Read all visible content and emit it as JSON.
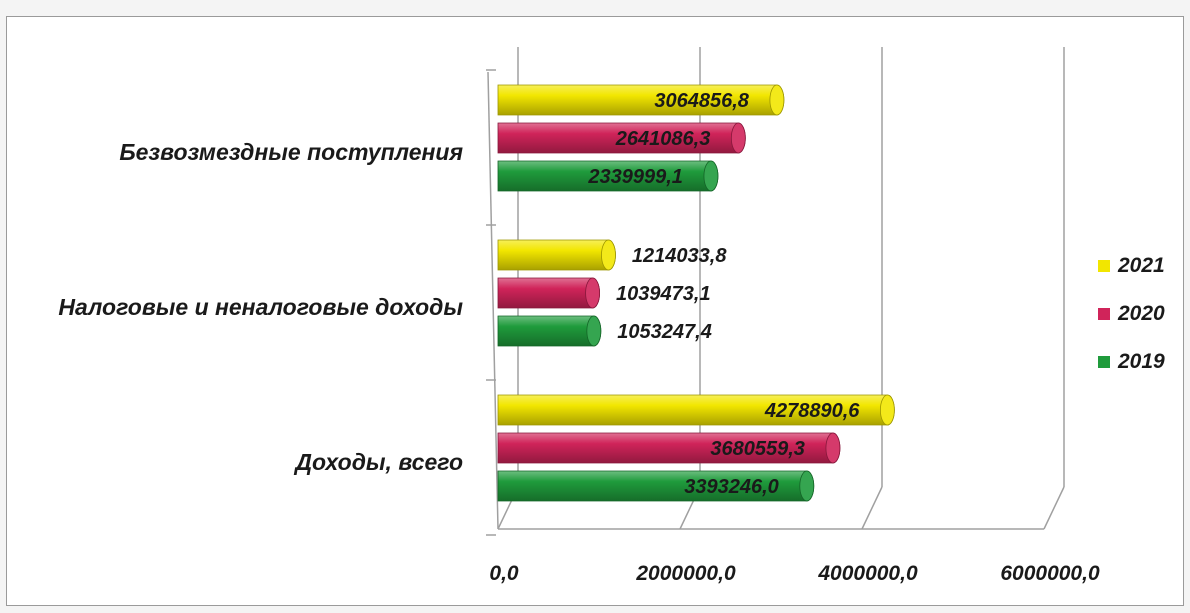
{
  "chart_data": {
    "type": "bar",
    "orientation": "horizontal",
    "style": "3d-cylinder",
    "categories": [
      "Доходы, всего",
      "Налоговые и неналоговые доходы",
      "Безвозмездные поступления"
    ],
    "series": [
      {
        "name": "2019",
        "color": "#1f9b3c",
        "values": [
          3393246.0,
          1053247.4,
          2339999.1
        ],
        "labels": [
          "3393246,0",
          "1053247,4",
          "2339999,1"
        ]
      },
      {
        "name": "2020",
        "color": "#d0245a",
        "values": [
          3680559.3,
          1039473.1,
          2641086.3
        ],
        "labels": [
          "3680559,3",
          "1039473,1",
          "2641086,3"
        ]
      },
      {
        "name": "2021",
        "color": "#f2e600",
        "values": [
          4278890.6,
          1214033.8,
          3064856.8
        ],
        "labels": [
          "4278890,6",
          "1214033,8",
          "3064856,8"
        ]
      }
    ],
    "xlim": [
      0,
      6000000
    ],
    "xticks": [
      "0,0",
      "2000000,0",
      "4000000,0",
      "6000000,0"
    ],
    "grid": true,
    "legend": {
      "position": "right",
      "order": [
        "2021",
        "2020",
        "2019"
      ]
    }
  }
}
